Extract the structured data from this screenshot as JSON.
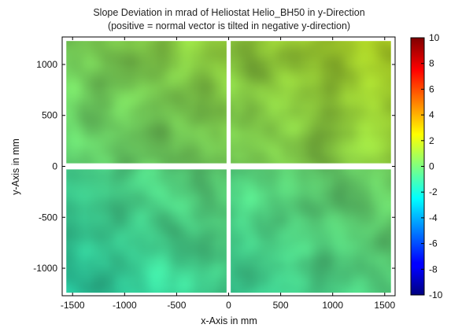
{
  "chart_data": {
    "type": "heatmap",
    "title": "Slope Deviation in mrad of Heliostat Helio_BH50 in y-Direction",
    "subtitle": "(positive = normal vector is tilted in negative y-direction)",
    "xlabel": "x-Axis in mm",
    "ylabel": "y-Axis in mm",
    "xlim": [
      -1600,
      1600
    ],
    "ylim": [
      -1270,
      1270
    ],
    "xticks": [
      -1500,
      -1000,
      -500,
      0,
      500,
      1000,
      1500
    ],
    "xtick_labels": [
      "-1500",
      "-1000",
      "-500",
      "0",
      "500",
      "1000",
      "1500"
    ],
    "yticks": [
      1000,
      500,
      0,
      -500,
      -1000
    ],
    "ytick_labels": [
      "1000",
      "500",
      "0",
      "-500",
      "-1000"
    ],
    "colorbar": {
      "colormap": "jet",
      "range": [
        -10,
        10
      ],
      "ticks": [
        10,
        8,
        6,
        4,
        2,
        0,
        -2,
        -4,
        -6,
        -8,
        -10
      ],
      "tick_labels": [
        "10",
        "8",
        "6",
        "4",
        "2",
        "0",
        "-2",
        "-4",
        "-6",
        "-8",
        "-10"
      ]
    },
    "grid": false,
    "legend": "none",
    "facets": [
      {
        "name": "upper-left",
        "x": [
          -1560,
          -20
        ],
        "y": [
          30,
          1230
        ],
        "mean_slope": 0.4
      },
      {
        "name": "upper-right",
        "x": [
          20,
          1560
        ],
        "y": [
          30,
          1230
        ],
        "mean_slope": 1.0
      },
      {
        "name": "lower-left",
        "x": [
          -1560,
          -20
        ],
        "y": [
          -1240,
          -30
        ],
        "mean_slope": -0.9
      },
      {
        "name": "lower-right",
        "x": [
          20,
          1560
        ],
        "y": [
          -1240,
          -30
        ],
        "mean_slope": -0.5
      }
    ]
  }
}
